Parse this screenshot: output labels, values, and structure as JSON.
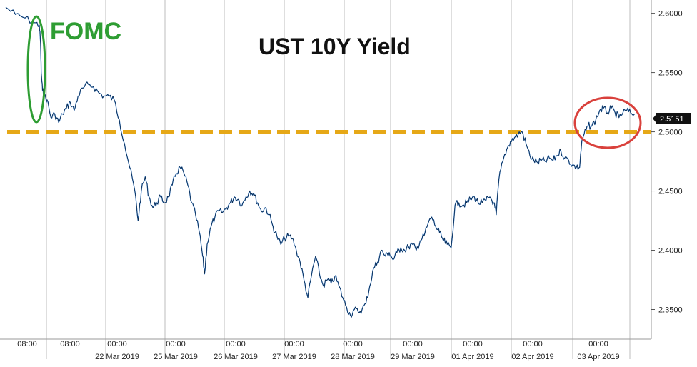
{
  "chart_data": {
    "type": "line",
    "title": "UST 10Y Yield",
    "ylim": [
      2.325,
      2.61
    ],
    "y_ticks": [
      "2.3500",
      "2.4000",
      "2.4500",
      "2.5000",
      "2.5500",
      "2.6000"
    ],
    "y_tick_values": [
      2.35,
      2.4,
      2.45,
      2.5,
      2.55,
      2.6
    ],
    "time_labels": [
      "08:00",
      "08:00",
      "00:00",
      "00:00",
      "00:00",
      "00:00",
      "00:00",
      "00:00",
      "00:00",
      "00:00"
    ],
    "date_labels": [
      "22 Mar 2019",
      "25 Mar 2019",
      "26 Mar 2019",
      "27 Mar 2019",
      "28 Mar 2019",
      "29 Mar 2019",
      "01 Apr 2019",
      "02 Apr 2019",
      "03 Apr 2019"
    ],
    "last_value": "2.5151",
    "reference_level": 2.5,
    "annotations": {
      "fomc": "FOMC"
    },
    "colors": {
      "line": "#1565c0",
      "reference": "#e6a817",
      "fomc": "#2e9d33",
      "circle": "#d9413c",
      "last_bg": "#111111"
    },
    "series": [
      {
        "points": [
          [
            0,
            2.605
          ],
          [
            1.5,
            2.599
          ],
          [
            3,
            2.596
          ],
          [
            4.5,
            2.592
          ],
          [
            5.2,
            2.59
          ],
          [
            5.4,
            2.575
          ],
          [
            5.5,
            2.55
          ],
          [
            5.7,
            2.535
          ],
          [
            6,
            2.53
          ],
          [
            6.4,
            2.527
          ],
          [
            7,
            2.512
          ],
          [
            7.6,
            2.515
          ],
          [
            8.2,
            2.508
          ],
          [
            8.8,
            2.515
          ],
          [
            9.4,
            2.52
          ],
          [
            10,
            2.525
          ],
          [
            10.6,
            2.518
          ],
          [
            11.2,
            2.53
          ],
          [
            12,
            2.537
          ],
          [
            12.8,
            2.54
          ],
          [
            13.6,
            2.538
          ],
          [
            14.4,
            2.533
          ],
          [
            15.2,
            2.53
          ],
          [
            16,
            2.53
          ],
          [
            16.8,
            2.527
          ],
          [
            17.6,
            2.51
          ],
          [
            18.4,
            2.49
          ],
          [
            19.2,
            2.47
          ],
          [
            20,
            2.45
          ],
          [
            20.5,
            2.425
          ],
          [
            21,
            2.45
          ],
          [
            21.6,
            2.462
          ],
          [
            22.2,
            2.445
          ],
          [
            22.8,
            2.436
          ],
          [
            23.4,
            2.44
          ],
          [
            24,
            2.445
          ],
          [
            24.6,
            2.44
          ],
          [
            25.2,
            2.445
          ],
          [
            25.8,
            2.455
          ],
          [
            26.4,
            2.465
          ],
          [
            27,
            2.47
          ],
          [
            27.6,
            2.465
          ],
          [
            28.2,
            2.455
          ],
          [
            28.8,
            2.44
          ],
          [
            29.4,
            2.43
          ],
          [
            30,
            2.415
          ],
          [
            30.5,
            2.395
          ],
          [
            30.8,
            2.38
          ],
          [
            31.2,
            2.405
          ],
          [
            31.8,
            2.42
          ],
          [
            32.4,
            2.428
          ],
          [
            33,
            2.433
          ],
          [
            33.6,
            2.432
          ],
          [
            34.2,
            2.436
          ],
          [
            34.8,
            2.44
          ],
          [
            35.4,
            2.445
          ],
          [
            36,
            2.443
          ],
          [
            36.6,
            2.438
          ],
          [
            37.2,
            2.445
          ],
          [
            37.8,
            2.45
          ],
          [
            38.4,
            2.448
          ],
          [
            39,
            2.44
          ],
          [
            39.6,
            2.433
          ],
          [
            40.2,
            2.436
          ],
          [
            40.8,
            2.43
          ],
          [
            41.4,
            2.42
          ],
          [
            42,
            2.412
          ],
          [
            42.6,
            2.405
          ],
          [
            43.2,
            2.41
          ],
          [
            43.8,
            2.412
          ],
          [
            44.4,
            2.41
          ],
          [
            45,
            2.4
          ],
          [
            45.6,
            2.39
          ],
          [
            46.2,
            2.375
          ],
          [
            46.8,
            2.36
          ],
          [
            47.4,
            2.38
          ],
          [
            48,
            2.395
          ],
          [
            48.6,
            2.38
          ],
          [
            49.2,
            2.37
          ],
          [
            49.8,
            2.375
          ],
          [
            50.4,
            2.372
          ],
          [
            51,
            2.378
          ],
          [
            51.6,
            2.37
          ],
          [
            52.2,
            2.36
          ],
          [
            52.8,
            2.352
          ],
          [
            53.4,
            2.345
          ],
          [
            54,
            2.35
          ],
          [
            54.6,
            2.348
          ],
          [
            55.2,
            2.35
          ],
          [
            55.8,
            2.355
          ],
          [
            56.4,
            2.37
          ],
          [
            57,
            2.385
          ],
          [
            57.6,
            2.39
          ],
          [
            58.2,
            2.4
          ],
          [
            58.8,
            2.395
          ],
          [
            59.4,
            2.398
          ],
          [
            60,
            2.392
          ],
          [
            60.6,
            2.398
          ],
          [
            61.2,
            2.402
          ],
          [
            61.8,
            2.4
          ],
          [
            62.4,
            2.403
          ],
          [
            63,
            2.405
          ],
          [
            63.6,
            2.4
          ],
          [
            64.2,
            2.408
          ],
          [
            64.8,
            2.412
          ],
          [
            65.4,
            2.422
          ],
          [
            66,
            2.428
          ],
          [
            66.6,
            2.42
          ],
          [
            67.2,
            2.415
          ],
          [
            67.8,
            2.408
          ],
          [
            68.4,
            2.405
          ],
          [
            69,
            2.402
          ],
          [
            69.6,
            2.438
          ],
          [
            70.2,
            2.44
          ],
          [
            70.8,
            2.438
          ],
          [
            71.4,
            2.44
          ],
          [
            72,
            2.443
          ],
          [
            72.6,
            2.445
          ],
          [
            73.2,
            2.44
          ],
          [
            73.8,
            2.44
          ],
          [
            74.4,
            2.442
          ],
          [
            75,
            2.445
          ],
          [
            75.6,
            2.44
          ],
          [
            76,
            2.43
          ],
          [
            76.4,
            2.46
          ],
          [
            77,
            2.475
          ],
          [
            77.6,
            2.485
          ],
          [
            78.2,
            2.492
          ],
          [
            78.8,
            2.495
          ],
          [
            79.4,
            2.498
          ],
          [
            80,
            2.5
          ],
          [
            80.6,
            2.49
          ],
          [
            81.2,
            2.48
          ],
          [
            81.8,
            2.476
          ],
          [
            82.4,
            2.474
          ],
          [
            83,
            2.476
          ],
          [
            83.6,
            2.475
          ],
          [
            84.2,
            2.478
          ],
          [
            84.8,
            2.476
          ],
          [
            85.4,
            2.48
          ],
          [
            86,
            2.484
          ],
          [
            86.6,
            2.478
          ],
          [
            87.2,
            2.476
          ],
          [
            87.8,
            2.472
          ],
          [
            88.4,
            2.47
          ],
          [
            88.9,
            2.47
          ],
          [
            89.2,
            2.49
          ],
          [
            89.6,
            2.498
          ],
          [
            90.2,
            2.505
          ],
          [
            90.8,
            2.505
          ],
          [
            91.4,
            2.51
          ],
          [
            92,
            2.518
          ],
          [
            92.6,
            2.52
          ],
          [
            93.2,
            2.516
          ],
          [
            93.8,
            2.52
          ],
          [
            94.4,
            2.516
          ],
          [
            95,
            2.512
          ],
          [
            95.6,
            2.516
          ],
          [
            96.2,
            2.518
          ],
          [
            96.8,
            2.516
          ],
          [
            97.4,
            2.515
          ]
        ]
      }
    ]
  }
}
